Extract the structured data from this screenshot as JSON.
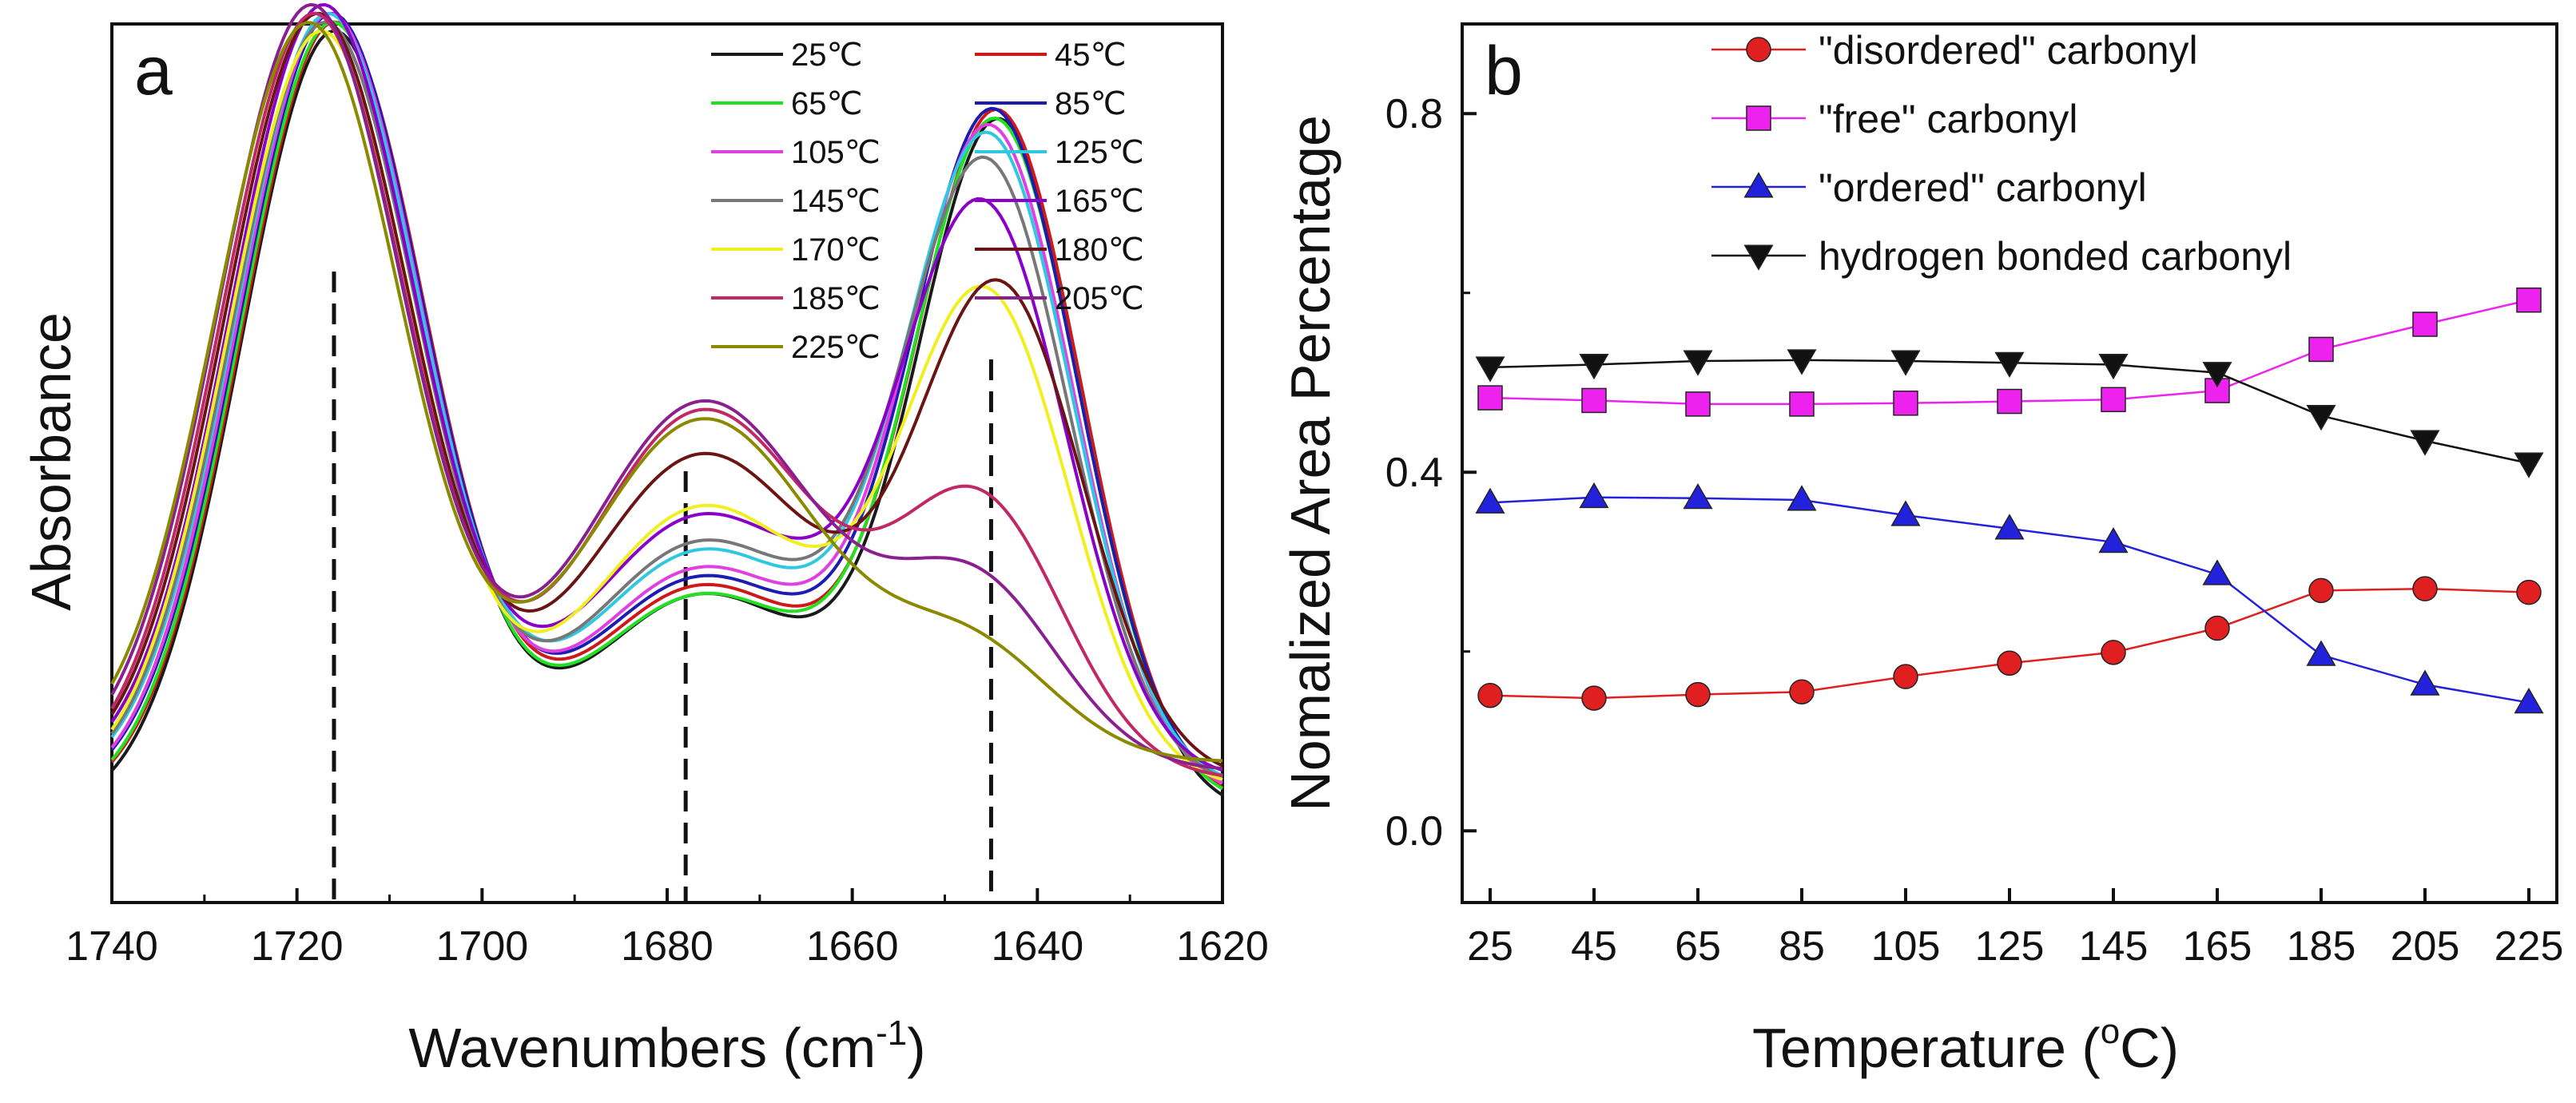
{
  "chart_data": [
    {
      "panel": "a",
      "type": "line",
      "xlabel": "Wavenumbers (cm",
      "xlabel_sup": "-1",
      "xlabel_close": ")",
      "ylabel": "Absorbance",
      "xlim": [
        1740,
        1620
      ],
      "ylim": [
        0,
        1
      ],
      "xticks": [
        "1740",
        "1720",
        "1700",
        "1680",
        "1660",
        "1640",
        "1620"
      ],
      "reference_lines_x": [
        1716,
        1678,
        1645
      ],
      "legend_position": "top-right",
      "peaks": {
        "p1": {
          "center": 1716,
          "width": 10
        },
        "p2": {
          "center": 1676,
          "width": 13
        },
        "p3": {
          "center": 1646,
          "width": 9
        }
      },
      "series": [
        {
          "name": "25℃",
          "color": "#1a1a1a",
          "params": {
            "h1": 0.89,
            "c1": 1716.0,
            "h2": 0.25,
            "h3": 0.78,
            "c3": 1644.0,
            "b": 0.1
          }
        },
        {
          "name": "45℃",
          "color": "#d01818",
          "params": {
            "h1": 0.89,
            "c1": 1716.0,
            "h2": 0.25,
            "h3": 0.78,
            "c3": 1644.2,
            "b": 0.11
          }
        },
        {
          "name": "65℃",
          "color": "#22e022",
          "params": {
            "h1": 0.89,
            "c1": 1716.2,
            "h2": 0.24,
            "h3": 0.77,
            "c3": 1644.4,
            "b": 0.11
          }
        },
        {
          "name": "85℃",
          "color": "#1c1cb0",
          "params": {
            "h1": 0.89,
            "c1": 1716.3,
            "h2": 0.25,
            "h3": 0.77,
            "c3": 1644.6,
            "b": 0.12
          }
        },
        {
          "name": "105℃",
          "color": "#e040e0",
          "params": {
            "h1": 0.89,
            "c1": 1716.5,
            "h2": 0.26,
            "h3": 0.75,
            "c3": 1645.0,
            "b": 0.12
          }
        },
        {
          "name": "125℃",
          "color": "#30c8e0",
          "params": {
            "h1": 0.88,
            "c1": 1716.7,
            "h2": 0.27,
            "h3": 0.73,
            "c3": 1645.2,
            "b": 0.13
          }
        },
        {
          "name": "145℃",
          "color": "#777777",
          "params": {
            "h1": 0.87,
            "c1": 1717.0,
            "h2": 0.28,
            "h3": 0.7,
            "c3": 1645.5,
            "b": 0.13
          }
        },
        {
          "name": "165℃",
          "color": "#8a00c8",
          "params": {
            "h1": 0.88,
            "c1": 1717.2,
            "h2": 0.3,
            "h3": 0.64,
            "c3": 1645.8,
            "b": 0.14
          }
        },
        {
          "name": "170℃",
          "color": "#f0f020",
          "params": {
            "h1": 0.86,
            "c1": 1717.4,
            "h2": 0.32,
            "h3": 0.55,
            "c3": 1645.5,
            "b": 0.13
          }
        },
        {
          "name": "180℃",
          "color": "#6a1414",
          "params": {
            "h1": 0.87,
            "c1": 1717.8,
            "h2": 0.37,
            "h3": 0.55,
            "c3": 1644.0,
            "b": 0.14
          }
        },
        {
          "name": "185℃",
          "color": "#c02868",
          "params": {
            "h1": 0.87,
            "c1": 1718.2,
            "h2": 0.42,
            "h3": 0.3,
            "c3": 1646.0,
            "b": 0.14
          }
        },
        {
          "name": "205℃",
          "color": "#8a2090",
          "params": {
            "h1": 0.87,
            "c1": 1718.5,
            "h2": 0.42,
            "h3": 0.2,
            "c3": 1646.5,
            "b": 0.15
          }
        },
        {
          "name": "225℃",
          "color": "#8a8a00",
          "params": {
            "h1": 0.84,
            "c1": 1718.8,
            "h2": 0.39,
            "h3": 0.12,
            "c3": 1647.0,
            "b": 0.16
          }
        }
      ]
    },
    {
      "panel": "b",
      "type": "line",
      "xlabel": "Temperature (",
      "xlabel_sup": "o",
      "xlabel_close": "C)",
      "ylabel": "Nomalized Area Percentage",
      "categories": [
        "25",
        "45",
        "65",
        "85",
        "105",
        "125",
        "145",
        "165",
        "185",
        "205",
        "225"
      ],
      "ylim": [
        -0.08,
        0.9
      ],
      "yticks": [
        "0.0",
        "0.4",
        "0.8"
      ],
      "legend_position": "top-right",
      "series": [
        {
          "name": "\"disordered\" carbonyl",
          "color": "#e02020",
          "marker": "circle",
          "values": [
            0.151,
            0.148,
            0.152,
            0.155,
            0.172,
            0.187,
            0.199,
            0.226,
            0.268,
            0.27,
            0.266
          ]
        },
        {
          "name": "\"free\" carbonyl",
          "color": "#ee22ee",
          "marker": "square",
          "values": [
            0.483,
            0.48,
            0.476,
            0.476,
            0.477,
            0.479,
            0.481,
            0.491,
            0.537,
            0.565,
            0.592
          ]
        },
        {
          "name": "\"ordered\" carbonyl",
          "color": "#2222dd",
          "marker": "triangle-up",
          "values": [
            0.366,
            0.372,
            0.371,
            0.369,
            0.352,
            0.337,
            0.322,
            0.286,
            0.196,
            0.163,
            0.143
          ]
        },
        {
          "name": "hydrogen bonded carbonyl",
          "color": "#111111",
          "marker": "triangle-down",
          "values": [
            0.517,
            0.52,
            0.524,
            0.525,
            0.524,
            0.522,
            0.52,
            0.511,
            0.463,
            0.435,
            0.41
          ]
        }
      ]
    }
  ],
  "panels": {
    "a": {
      "label": "a"
    },
    "b": {
      "label": "b"
    }
  }
}
